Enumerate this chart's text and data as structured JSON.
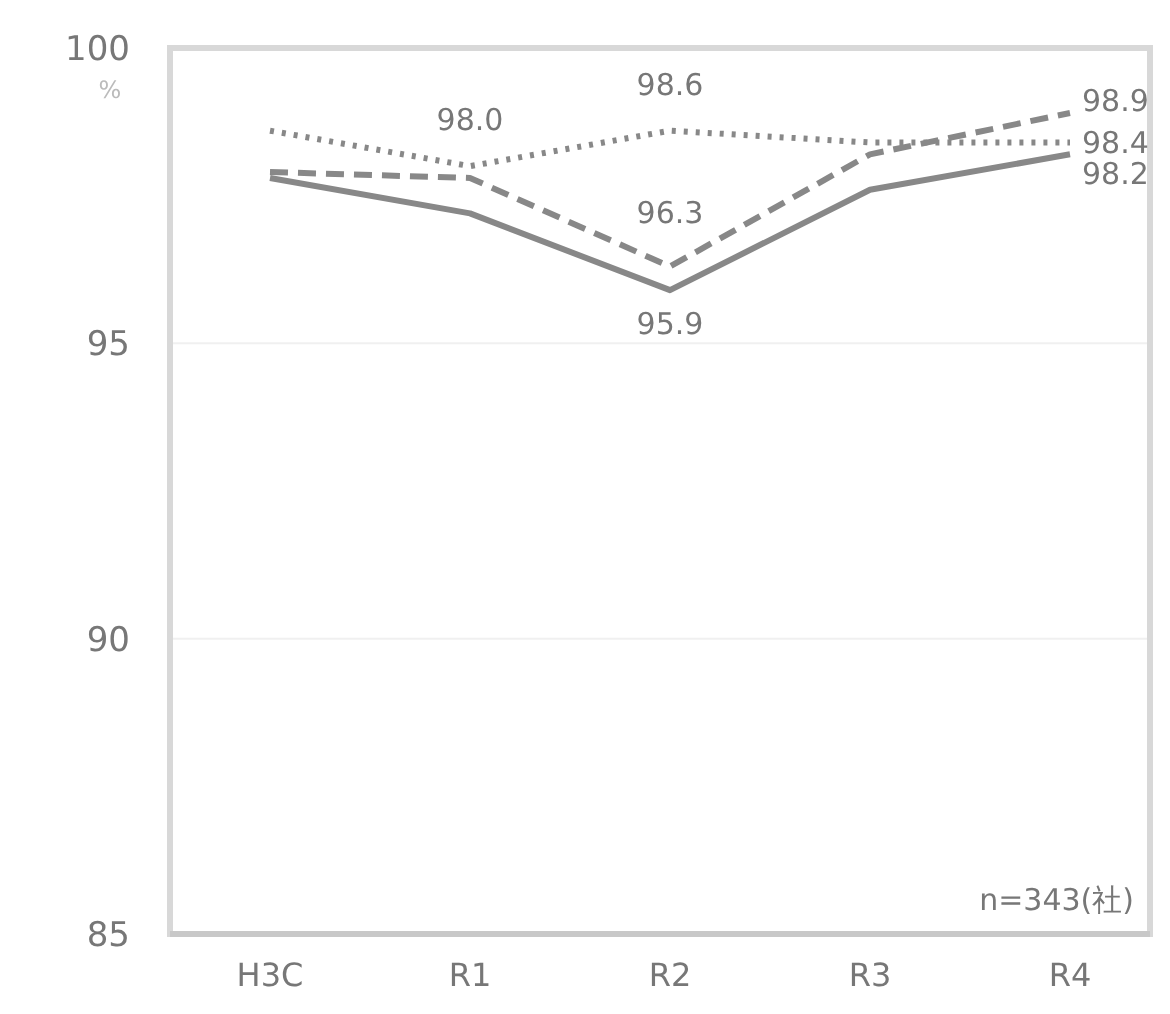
{
  "chart_data": {
    "type": "line",
    "ylabel": "%",
    "categories": [
      "H3C",
      "R1",
      "R2",
      "R3",
      "R4"
    ],
    "ylim": [
      85,
      100
    ],
    "yticks": [
      85,
      90,
      95,
      100
    ],
    "grid": "y",
    "marker": "none",
    "series": [
      {
        "color": "#888888",
        "line_style": "solid",
        "values": [
          97.8,
          97.2,
          95.9,
          97.6,
          98.2
        ],
        "value_labels": [
          null,
          null,
          "95.9",
          null,
          "98.2"
        ]
      },
      {
        "color": "#888888",
        "line_style": "dashed",
        "values": [
          97.9,
          97.8,
          96.3,
          98.2,
          98.9
        ],
        "value_labels": [
          null,
          null,
          "96.3",
          null,
          "98.9"
        ]
      },
      {
        "color": "#888888",
        "line_style": "dotted",
        "values": [
          98.6,
          98.0,
          98.6,
          98.4,
          98.4
        ],
        "value_labels": [
          null,
          "98.0",
          "98.6",
          null,
          "98.4"
        ]
      }
    ],
    "annotations": [
      "n=343(社)"
    ]
  }
}
